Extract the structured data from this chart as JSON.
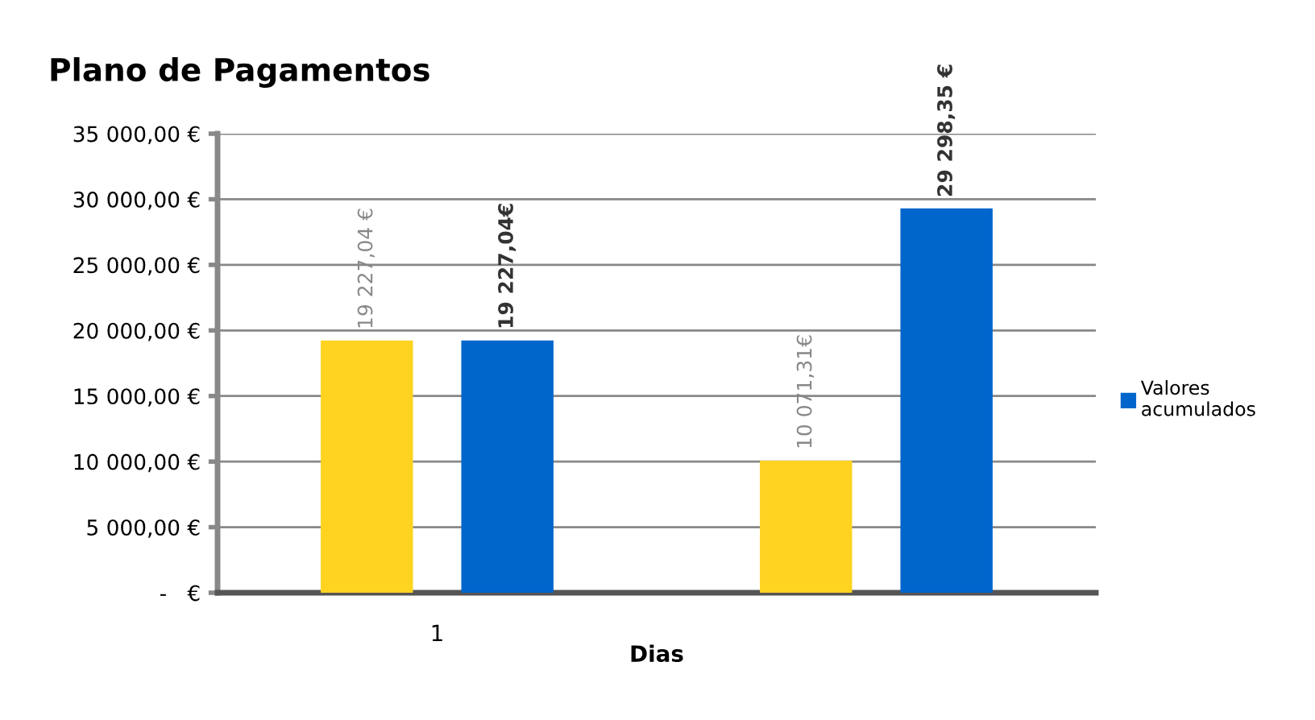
{
  "chart_data": {
    "type": "bar",
    "title": "Plano de Pagamentos",
    "xlabel": "Dias",
    "categories": [
      "1",
      null
    ],
    "series": [
      {
        "color": "#ffd320",
        "values": [
          19227.04,
          10071.31
        ],
        "value_labels": [
          "19 227,04 €",
          "10 071,31€"
        ]
      },
      {
        "name": "Valores acumulados",
        "color": "#0066cc",
        "values": [
          19227.04,
          29298.35
        ],
        "value_labels": [
          "19 227,04€",
          "29 298,35 €"
        ]
      }
    ],
    "ylim": [
      0,
      35000
    ],
    "yticks": [
      {
        "value": 0,
        "label": "-   €"
      },
      {
        "value": 5000,
        "label": "5 000,00 €"
      },
      {
        "value": 10000,
        "label": "10 000,00 €"
      },
      {
        "value": 15000,
        "label": "15 000,00 €"
      },
      {
        "value": 20000,
        "label": "20 000,00 €"
      },
      {
        "value": 25000,
        "label": "25 000,00 €"
      },
      {
        "value": 30000,
        "label": "30 000,00 €"
      },
      {
        "value": 35000,
        "label": "35 000,00 €"
      }
    ],
    "grid": "y",
    "legend": "right"
  }
}
